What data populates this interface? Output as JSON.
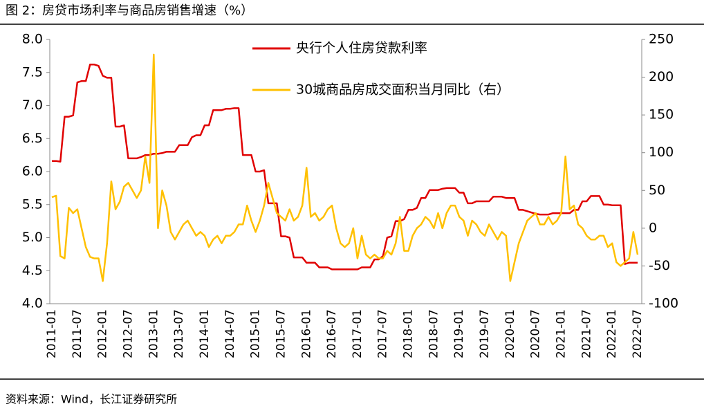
{
  "chart_data": {
    "type": "line",
    "title": "图 2：房贷市场利率与商品房销售增速（%）",
    "source": "资料来源：Wind，长江证券研究所",
    "categories": [
      "2011-01",
      null,
      null,
      null,
      null,
      null,
      "2011-07",
      null,
      null,
      null,
      null,
      null,
      "2012-01",
      null,
      null,
      null,
      null,
      null,
      "2012-07",
      null,
      null,
      null,
      null,
      null,
      "2013-01",
      null,
      null,
      null,
      null,
      null,
      "2013-07",
      null,
      null,
      null,
      null,
      null,
      "2014-01",
      null,
      null,
      null,
      null,
      null,
      "2014-07",
      null,
      null,
      null,
      null,
      null,
      "2015-01",
      null,
      null,
      null,
      null,
      null,
      "2015-07",
      null,
      null,
      null,
      null,
      null,
      "2016-01",
      null,
      null,
      null,
      null,
      null,
      "2016-07",
      null,
      null,
      null,
      null,
      null,
      "2017-01",
      null,
      null,
      null,
      null,
      null,
      "2017-07",
      null,
      null,
      null,
      null,
      null,
      "2018-01",
      null,
      null,
      null,
      null,
      null,
      "2018-07",
      null,
      null,
      null,
      null,
      null,
      "2019-01",
      null,
      null,
      null,
      null,
      null,
      "2019-07",
      null,
      null,
      null,
      null,
      null,
      "2020-01",
      null,
      null,
      null,
      null,
      null,
      "2020-07",
      null,
      null,
      null,
      null,
      null,
      "2021-01",
      null,
      null,
      null,
      null,
      null,
      "2021-07",
      null,
      null,
      null,
      null,
      null,
      "2022-01",
      null,
      null,
      null,
      null,
      null,
      "2022-07"
    ],
    "series": [
      {
        "name": "央行个人住房贷款利率",
        "color": "#e00000",
        "values": [
          6.16,
          6.16,
          6.15,
          6.83,
          6.83,
          6.85,
          7.35,
          7.37,
          7.37,
          7.62,
          7.62,
          7.6,
          7.45,
          7.42,
          7.42,
          6.68,
          6.68,
          6.7,
          6.2,
          6.2,
          6.2,
          6.22,
          6.25,
          6.25,
          6.27,
          6.27,
          6.28,
          6.3,
          6.3,
          6.3,
          6.4,
          6.4,
          6.4,
          6.52,
          6.55,
          6.55,
          6.7,
          6.7,
          6.93,
          6.93,
          6.93,
          6.95,
          6.95,
          6.96,
          6.96,
          6.25,
          6.25,
          6.25,
          6.0,
          6.0,
          6.02,
          5.52,
          5.52,
          5.52,
          5.02,
          5.02,
          5.0,
          4.7,
          4.7,
          4.7,
          4.62,
          4.62,
          4.62,
          4.55,
          4.55,
          4.55,
          4.52,
          4.52,
          4.52,
          4.52,
          4.52,
          4.52,
          4.52,
          4.55,
          4.55,
          4.55,
          4.67,
          4.67,
          4.72,
          5.0,
          5.02,
          5.25,
          5.25,
          5.28,
          5.42,
          5.42,
          5.45,
          5.6,
          5.6,
          5.72,
          5.72,
          5.72,
          5.74,
          5.75,
          5.75,
          5.75,
          5.68,
          5.68,
          5.52,
          5.52,
          5.55,
          5.55,
          5.55,
          5.55,
          5.62,
          5.62,
          5.62,
          5.6,
          5.6,
          5.6,
          5.42,
          5.42,
          5.4,
          5.38,
          5.36,
          5.35,
          5.35,
          5.35,
          5.37,
          5.37,
          5.37,
          5.37,
          5.37,
          5.42,
          5.42,
          5.55,
          5.55,
          5.63,
          5.63,
          5.63,
          5.5,
          5.5,
          5.49,
          5.49,
          5.49,
          4.6,
          4.62,
          4.62,
          4.62
        ]
      },
      {
        "name": "30城商品房成交面积当月同比（右）",
        "color": "#ffc000",
        "axis": "y2",
        "values": [
          41,
          43,
          -37,
          -40,
          27,
          20,
          25,
          0,
          -25,
          -38,
          -40,
          -40,
          -70,
          -20,
          62,
          25,
          35,
          55,
          60,
          50,
          40,
          50,
          95,
          60,
          230,
          0,
          50,
          30,
          -5,
          -15,
          -5,
          5,
          10,
          0,
          -10,
          -5,
          -10,
          -25,
          -15,
          -10,
          -20,
          -10,
          -10,
          -5,
          5,
          5,
          30,
          10,
          -5,
          10,
          30,
          60,
          40,
          20,
          15,
          10,
          25,
          10,
          15,
          30,
          80,
          15,
          20,
          10,
          15,
          25,
          30,
          0,
          -20,
          -25,
          -20,
          0,
          -40,
          -10,
          -35,
          -40,
          -35,
          -40,
          -40,
          -30,
          -35,
          -20,
          15,
          -30,
          -30,
          -10,
          0,
          5,
          15,
          10,
          0,
          20,
          0,
          20,
          30,
          30,
          15,
          10,
          -10,
          10,
          5,
          -5,
          -10,
          5,
          -5,
          -15,
          -5,
          -10,
          -70,
          -45,
          -20,
          -5,
          10,
          15,
          20,
          5,
          5,
          15,
          5,
          10,
          20,
          95,
          25,
          30,
          5,
          0,
          -10,
          -15,
          -15,
          -10,
          -10,
          -25,
          -20,
          -45,
          -50,
          -45,
          -40,
          -5,
          -35
        ]
      }
    ],
    "ylim": [
      4.0,
      8.0
    ],
    "yticks": [
      {
        "value": 4.0,
        "label": "4.0"
      },
      {
        "value": 4.5,
        "label": "4.5"
      },
      {
        "value": 5.0,
        "label": "5.0"
      },
      {
        "value": 5.5,
        "label": "5.5"
      },
      {
        "value": 6.0,
        "label": "6.0"
      },
      {
        "value": 6.5,
        "label": "6.5"
      },
      {
        "value": 7.0,
        "label": "7.0"
      },
      {
        "value": 7.5,
        "label": "7.5"
      },
      {
        "value": 8.0,
        "label": "8.0"
      }
    ],
    "y2lim": [
      -100,
      250
    ],
    "y2ticks": [
      -100,
      -50,
      0,
      50,
      100,
      150,
      200,
      250
    ],
    "grid": false
  }
}
